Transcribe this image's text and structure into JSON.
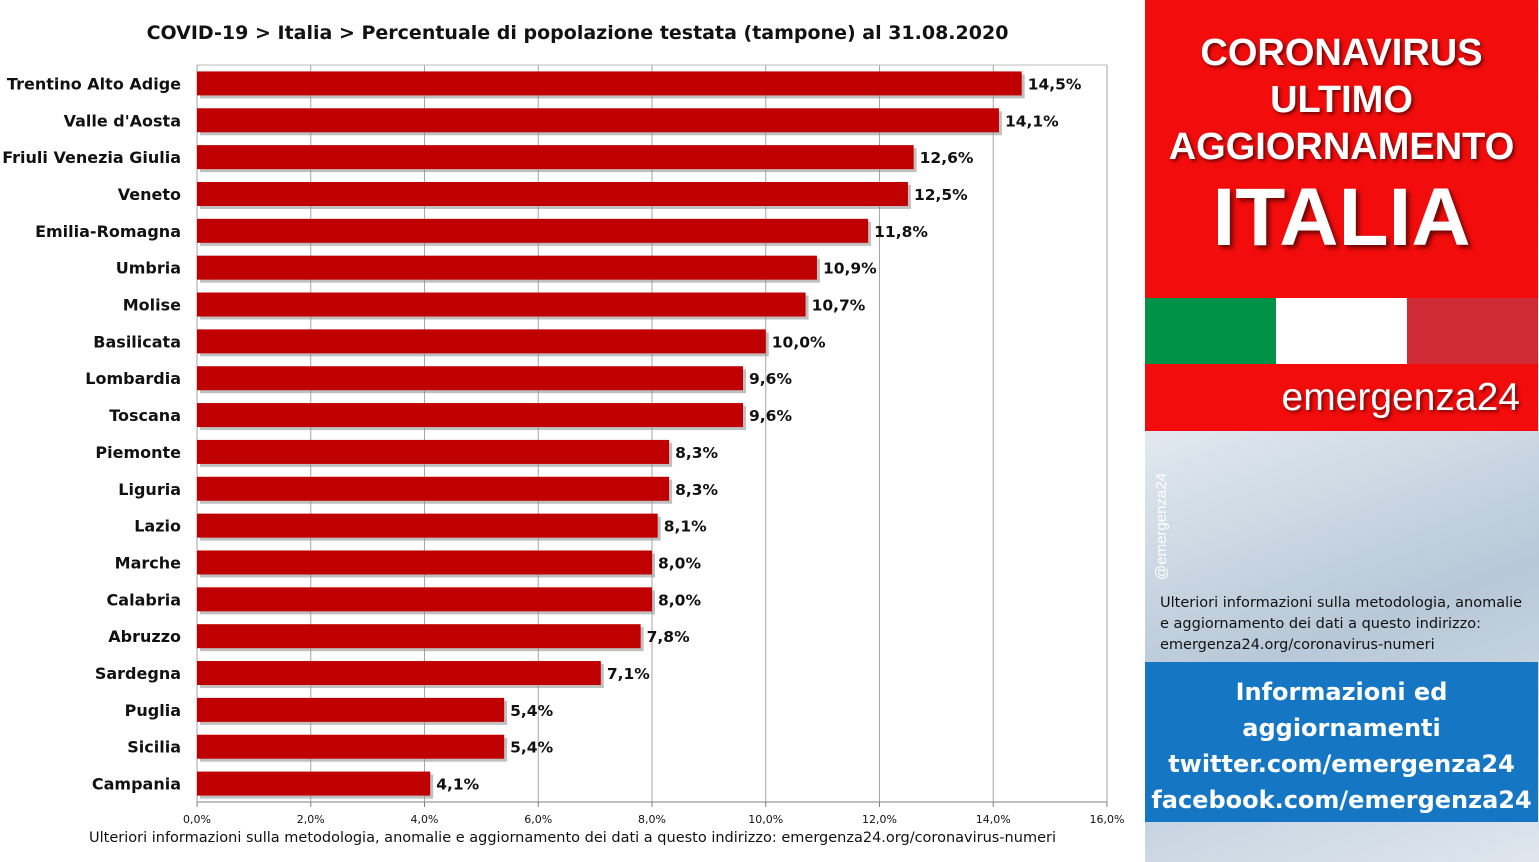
{
  "chart_data": {
    "type": "bar",
    "orientation": "horizontal",
    "title": "COVID-19 > Italia > Percentuale di popolazione testata (tampone) al 31.08.2020",
    "categories": [
      "Trentino Alto Adige",
      "Valle d'Aosta",
      "Friuli Venezia Giulia",
      "Veneto",
      "Emilia-Romagna",
      "Umbria",
      "Molise",
      "Basilicata",
      "Lombardia",
      "Toscana",
      "Piemonte",
      "Liguria",
      "Lazio",
      "Marche",
      "Calabria",
      "Abruzzo",
      "Sardegna",
      "Puglia",
      "Sicilia",
      "Campania"
    ],
    "values": [
      14.5,
      14.1,
      12.6,
      12.5,
      11.8,
      10.9,
      10.7,
      10.0,
      9.6,
      9.6,
      8.3,
      8.3,
      8.1,
      8.0,
      8.0,
      7.8,
      7.1,
      5.4,
      5.4,
      4.1
    ],
    "value_labels": [
      "14,5%",
      "14,1%",
      "12,6%",
      "12,5%",
      "11,8%",
      "10,9%",
      "10,7%",
      "10,0%",
      "9,6%",
      "9,6%",
      "8,3%",
      "8,3%",
      "8,1%",
      "8,0%",
      "8,0%",
      "7,8%",
      "7,1%",
      "5,4%",
      "5,4%",
      "4,1%"
    ],
    "x_ticks": [
      "0,0%",
      "2,0%",
      "4,0%",
      "6,0%",
      "8,0%",
      "10,0%",
      "12,0%",
      "14,0%",
      "16,0%"
    ],
    "xlim": [
      0,
      16
    ],
    "grid": "vertical",
    "bar_color": "#c00000",
    "legend": "none",
    "footer": "Ulteriori informazioni sulla metodologia, anomalie e aggiornamento dei dati a questo indirizzo: emergenza24.org/coronavirus-numeri"
  },
  "side": {
    "header_lines": [
      "CORONAVIRUS",
      "ULTIMO",
      "AGGIORNAMENTO"
    ],
    "header_big": "ITALIA",
    "flag_colors": [
      "#009246",
      "#ffffff",
      "#ce2b37"
    ],
    "brand": "emergenza24",
    "handle": "@emergenza24",
    "note_lines": [
      "Ulteriori informazioni sulla metodologia, anomalie",
      "e aggiornamento dei dati a questo indirizzo:",
      "emergenza24.org/coronavirus-numeri"
    ],
    "blue_lines": [
      "Informazioni ed",
      "aggiornamenti",
      "twitter.com/emergenza24",
      "facebook.com/emergenza24"
    ]
  }
}
